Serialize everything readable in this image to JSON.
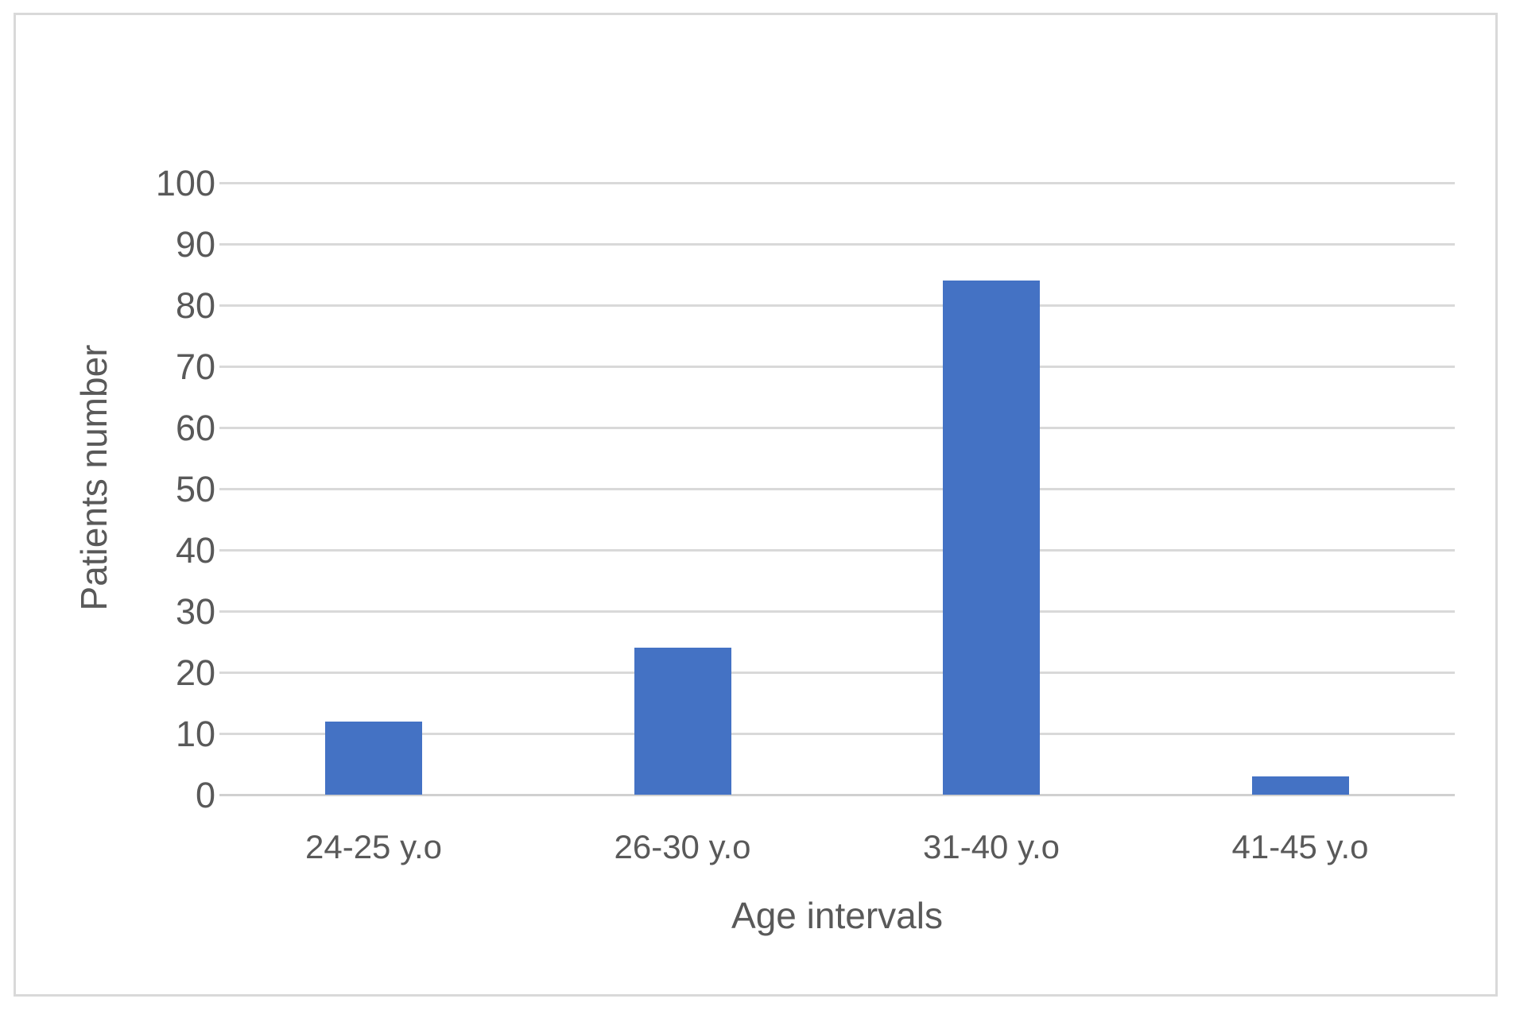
{
  "chart_data": {
    "type": "bar",
    "title": "",
    "categories": [
      "24-25 y.o",
      "26-30 y.o",
      "31-40 y.o",
      "41-45 y.o"
    ],
    "values": [
      12,
      24,
      84,
      3
    ],
    "xlabel": "Age intervals",
    "ylabel": "Patients number",
    "ylim": [
      0,
      100
    ],
    "ytick_step": 10,
    "yticks": [
      "0",
      "10",
      "20",
      "30",
      "40",
      "50",
      "60",
      "70",
      "80",
      "90",
      "100"
    ],
    "legend": "none",
    "grid": "horizontal",
    "bar_color": "#4472c4",
    "gridline_color": "#d9d9d9",
    "border_color": "#d9d9d9",
    "text_color": "#595959"
  }
}
